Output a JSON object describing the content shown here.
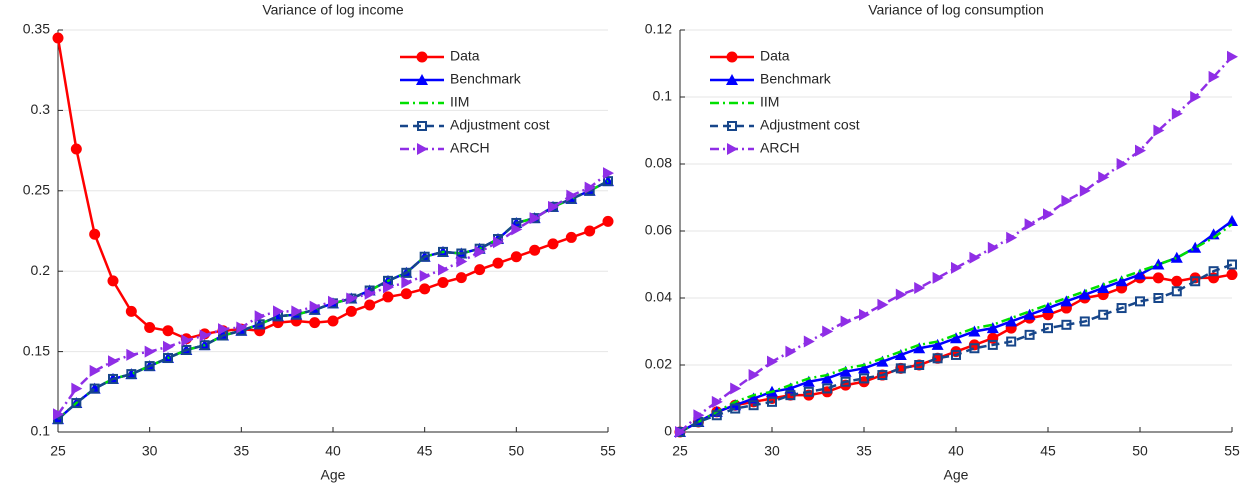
{
  "chart_data": [
    {
      "type": "line",
      "title": "Variance of log income",
      "xlabel": "Age",
      "x": [
        25,
        26,
        27,
        28,
        29,
        30,
        31,
        32,
        33,
        34,
        35,
        36,
        37,
        38,
        39,
        40,
        41,
        42,
        43,
        44,
        45,
        46,
        47,
        48,
        49,
        50,
        51,
        52,
        53,
        54,
        55
      ],
      "xlim": [
        25,
        55
      ],
      "xticks": [
        25,
        30,
        35,
        40,
        45,
        50,
        55
      ],
      "ylim": [
        0.1,
        0.35
      ],
      "yticks": [
        0.1,
        0.15,
        0.2,
        0.25,
        0.3,
        0.35
      ],
      "grid": true,
      "legend": "upper right",
      "series": [
        {
          "name": "Data",
          "color": "#ff0000",
          "marker": "circle",
          "dash": "solid",
          "values": [
            0.345,
            0.276,
            0.223,
            0.194,
            0.175,
            0.165,
            0.163,
            0.158,
            0.161,
            0.163,
            0.164,
            0.163,
            0.168,
            0.169,
            0.168,
            0.169,
            0.175,
            0.179,
            0.184,
            0.186,
            0.189,
            0.193,
            0.196,
            0.201,
            0.205,
            0.209,
            0.213,
            0.217,
            0.221,
            0.225,
            0.231
          ]
        },
        {
          "name": "Benchmark",
          "color": "#0000ff",
          "marker": "triangle-up",
          "dash": "solid",
          "values": [
            0.108,
            0.118,
            0.127,
            0.133,
            0.136,
            0.141,
            0.146,
            0.151,
            0.154,
            0.16,
            0.163,
            0.167,
            0.172,
            0.173,
            0.176,
            0.18,
            0.183,
            0.188,
            0.194,
            0.199,
            0.209,
            0.212,
            0.211,
            0.214,
            0.22,
            0.23,
            0.233,
            0.24,
            0.245,
            0.25,
            0.256
          ]
        },
        {
          "name": "IIM",
          "color": "#00e000",
          "marker": "none",
          "dash": "dashdot",
          "values": [
            0.108,
            0.118,
            0.127,
            0.133,
            0.136,
            0.141,
            0.146,
            0.151,
            0.154,
            0.16,
            0.163,
            0.167,
            0.172,
            0.173,
            0.176,
            0.18,
            0.183,
            0.188,
            0.194,
            0.199,
            0.209,
            0.212,
            0.211,
            0.214,
            0.22,
            0.23,
            0.233,
            0.24,
            0.245,
            0.25,
            0.256
          ]
        },
        {
          "name": "Adjustment cost",
          "color": "#17468a",
          "marker": "square",
          "dash": "dashed",
          "values": [
            0.108,
            0.118,
            0.127,
            0.133,
            0.136,
            0.141,
            0.146,
            0.151,
            0.154,
            0.16,
            0.163,
            0.167,
            0.172,
            0.173,
            0.176,
            0.18,
            0.183,
            0.188,
            0.194,
            0.199,
            0.209,
            0.212,
            0.211,
            0.214,
            0.22,
            0.23,
            0.233,
            0.24,
            0.245,
            0.25,
            0.256
          ]
        },
        {
          "name": "ARCH",
          "color": "#8f2ee6",
          "marker": "triangle-right",
          "dash": "dashdot",
          "values": [
            0.111,
            0.127,
            0.138,
            0.144,
            0.148,
            0.15,
            0.153,
            0.157,
            0.16,
            0.164,
            0.165,
            0.172,
            0.175,
            0.175,
            0.178,
            0.181,
            0.183,
            0.186,
            0.19,
            0.193,
            0.197,
            0.201,
            0.206,
            0.212,
            0.218,
            0.226,
            0.233,
            0.24,
            0.247,
            0.252,
            0.261
          ]
        }
      ]
    },
    {
      "type": "line",
      "title": "Variance of log consumption",
      "xlabel": "Age",
      "x": [
        25,
        26,
        27,
        28,
        29,
        30,
        31,
        32,
        33,
        34,
        35,
        36,
        37,
        38,
        39,
        40,
        41,
        42,
        43,
        44,
        45,
        46,
        47,
        48,
        49,
        50,
        51,
        52,
        53,
        54,
        55
      ],
      "xlim": [
        25,
        55
      ],
      "xticks": [
        25,
        30,
        35,
        40,
        45,
        50,
        55
      ],
      "ylim": [
        0,
        0.12
      ],
      "yticks": [
        0,
        0.02,
        0.04,
        0.06,
        0.08,
        0.1,
        0.12
      ],
      "grid": true,
      "legend": "upper left",
      "series": [
        {
          "name": "Data",
          "color": "#ff0000",
          "marker": "circle",
          "dash": "solid",
          "values": [
            0,
            0.003,
            0.006,
            0.008,
            0.009,
            0.01,
            0.011,
            0.011,
            0.012,
            0.014,
            0.015,
            0.017,
            0.019,
            0.02,
            0.022,
            0.024,
            0.026,
            0.028,
            0.031,
            0.034,
            0.035,
            0.037,
            0.04,
            0.041,
            0.043,
            0.046,
            0.046,
            0.045,
            0.046,
            0.046,
            0.047
          ]
        },
        {
          "name": "Benchmark",
          "color": "#0000ff",
          "marker": "triangle-up",
          "dash": "solid",
          "values": [
            0,
            0.003,
            0.006,
            0.008,
            0.01,
            0.012,
            0.013,
            0.015,
            0.016,
            0.018,
            0.019,
            0.021,
            0.023,
            0.025,
            0.026,
            0.028,
            0.03,
            0.031,
            0.033,
            0.035,
            0.037,
            0.039,
            0.041,
            0.043,
            0.045,
            0.047,
            0.05,
            0.052,
            0.055,
            0.059,
            0.063
          ]
        },
        {
          "name": "IIM",
          "color": "#00e000",
          "marker": "none",
          "dash": "dashdot",
          "values": [
            0,
            0.003,
            0.006,
            0.009,
            0.011,
            0.012,
            0.014,
            0.016,
            0.017,
            0.019,
            0.02,
            0.022,
            0.024,
            0.026,
            0.027,
            0.029,
            0.031,
            0.032,
            0.034,
            0.036,
            0.038,
            0.04,
            0.042,
            0.044,
            0.046,
            0.048,
            0.05,
            0.052,
            0.055,
            0.058,
            0.062
          ]
        },
        {
          "name": "Adjustment cost",
          "color": "#17468a",
          "marker": "square",
          "dash": "dashed",
          "values": [
            0,
            0.003,
            0.005,
            0.007,
            0.008,
            0.009,
            0.011,
            0.012,
            0.013,
            0.015,
            0.016,
            0.017,
            0.019,
            0.02,
            0.022,
            0.023,
            0.025,
            0.026,
            0.027,
            0.029,
            0.031,
            0.032,
            0.033,
            0.035,
            0.037,
            0.039,
            0.04,
            0.042,
            0.045,
            0.048,
            0.05
          ]
        },
        {
          "name": "ARCH",
          "color": "#8f2ee6",
          "marker": "triangle-right",
          "dash": "dashdot",
          "values": [
            0,
            0.005,
            0.009,
            0.013,
            0.017,
            0.021,
            0.024,
            0.027,
            0.03,
            0.033,
            0.035,
            0.038,
            0.041,
            0.043,
            0.046,
            0.049,
            0.052,
            0.055,
            0.058,
            0.062,
            0.065,
            0.069,
            0.072,
            0.076,
            0.08,
            0.084,
            0.09,
            0.095,
            0.1,
            0.106,
            0.112
          ]
        }
      ]
    }
  ]
}
